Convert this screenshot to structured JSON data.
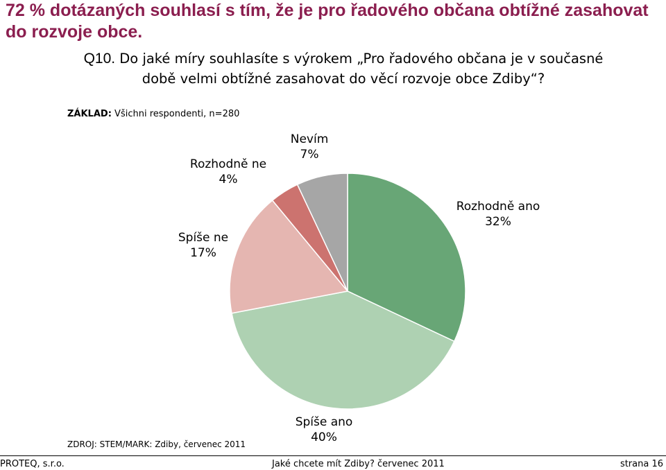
{
  "headline": "72 % dotázaných souhlasí s tím, že je pro řadového občana obtížné zasahovat do rozvoje obce.",
  "question": {
    "number": "Q10.",
    "text": "Do jaké míry souhlasíte s výrokem „Pro řadového občana je v současné době velmi obtížné zasahovat do věcí rozvoje obce Zdiby“?"
  },
  "base": {
    "label": "ZÁKLAD:",
    "text": "Všichni respondenti, n=280"
  },
  "source": "ZDROJ: STEM/MARK: Zdiby, červenec 2011",
  "footer": {
    "left": "PROTEQ, s.r.o.",
    "center": "Jaké chcete mít Zdiby? červenec 2011",
    "right": "strana 16"
  },
  "chart_data": {
    "type": "pie",
    "start": "12 o'clock",
    "direction": "clockwise",
    "slices": [
      {
        "name": "Rozhodně ano",
        "value": 32,
        "label": "32%",
        "color": "#68a676"
      },
      {
        "name": "Spíše ano",
        "value": 40,
        "label": "40%",
        "color": "#aed1b2"
      },
      {
        "name": "Spíše ne",
        "value": 17,
        "label": "17%",
        "color": "#e5b6b1"
      },
      {
        "name": "Rozhodně ne",
        "value": 4,
        "label": "4%",
        "color": "#cc736f"
      },
      {
        "name": "Nevím",
        "value": 7,
        "label": "7%",
        "color": "#a6a6a6"
      }
    ]
  }
}
